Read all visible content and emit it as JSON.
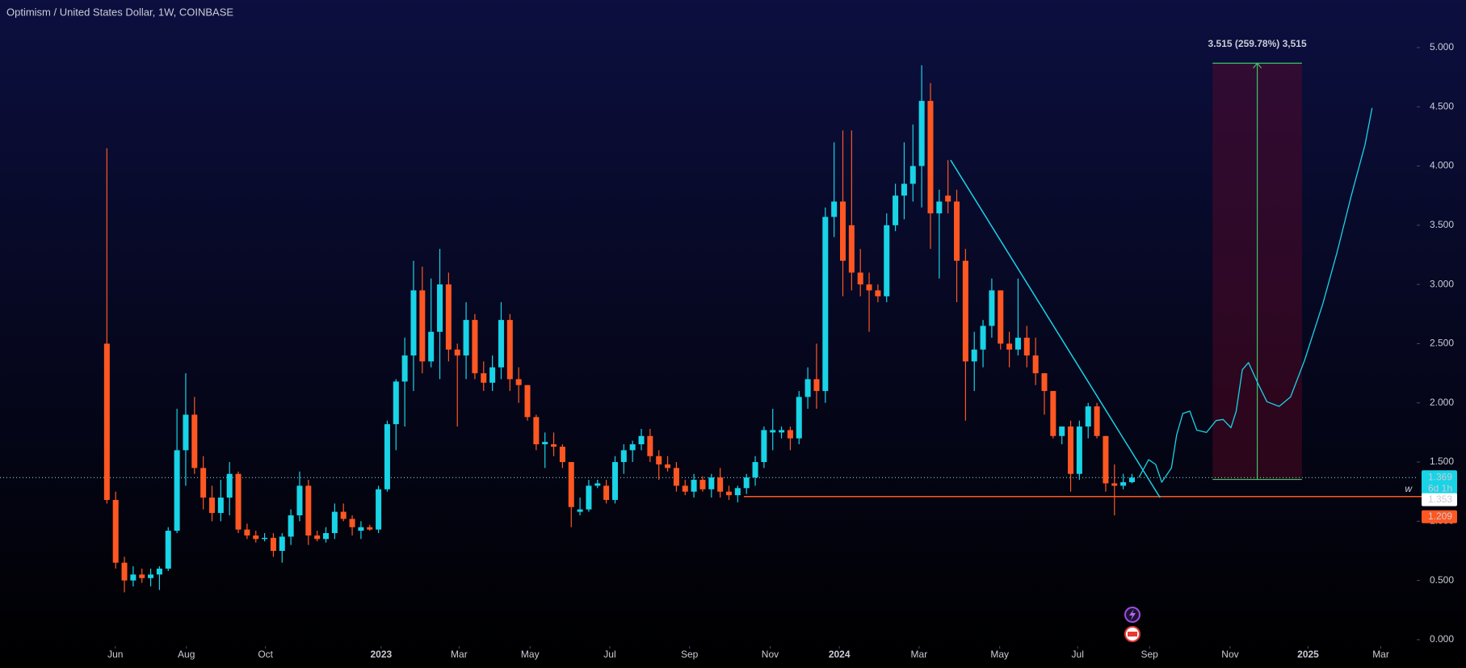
{
  "chart_data": {
    "type": "candlestick",
    "title": "Optimism / United States Dollar, 1W, COINBASE",
    "up_color": "#19d3e6",
    "down_color": "#ff5722",
    "xlim": [
      -12.2,
      149.5
    ],
    "xticks": [
      {
        "value": 0.96,
        "label": "Jun"
      },
      {
        "value": 9.07,
        "label": "Aug"
      },
      {
        "value": 18.1,
        "label": "Oct"
      },
      {
        "value": 31.3,
        "label": "2023"
      },
      {
        "value": 40.2,
        "label": "Mar"
      },
      {
        "value": 48.3,
        "label": "May"
      },
      {
        "value": 57.4,
        "label": "Jul"
      },
      {
        "value": 66.5,
        "label": "Sep"
      },
      {
        "value": 75.7,
        "label": "Nov"
      },
      {
        "value": 83.6,
        "label": "2024"
      },
      {
        "value": 92.7,
        "label": "Mar"
      },
      {
        "value": 101.9,
        "label": "May"
      },
      {
        "value": 110.8,
        "label": "Jul"
      },
      {
        "value": 119.0,
        "label": "Sep"
      },
      {
        "value": 128.2,
        "label": "Nov"
      },
      {
        "value": 137.1,
        "label": "2025"
      },
      {
        "value": 145.4,
        "label": "Mar"
      }
    ],
    "ylim": [
      -0.055,
      5.402
    ],
    "yticks": [
      {
        "value": 0,
        "label": "0.000"
      },
      {
        "value": 0.5,
        "label": "0.500"
      },
      {
        "value": 1,
        "label": "1.000"
      },
      {
        "value": 1.5,
        "label": "1.500"
      },
      {
        "value": 2,
        "label": "2.000"
      },
      {
        "value": 2.5,
        "label": "2.500"
      },
      {
        "value": 3,
        "label": "3.000"
      },
      {
        "value": 3.5,
        "label": "3.500"
      },
      {
        "value": 4,
        "label": "4.000"
      },
      {
        "value": 4.5,
        "label": "4.500"
      },
      {
        "value": 5,
        "label": "5.000"
      }
    ],
    "grid": false,
    "open": [
      2.5,
      1.18,
      0.65,
      0.5,
      0.55,
      0.52,
      0.55,
      0.6,
      0.92,
      1.6,
      1.9,
      1.45,
      1.2,
      1.07,
      1.2,
      1.4,
      0.93,
      0.88,
      0.85,
      0.86,
      0.75,
      0.87,
      1.05,
      1.3,
      0.88,
      0.85,
      0.9,
      1.08,
      1.02,
      0.92,
      0.95,
      0.93,
      1.27,
      1.82,
      2.18,
      2.4,
      2.95,
      2.35,
      2.6,
      3.0,
      2.45,
      2.4,
      2.7,
      2.25,
      2.17,
      2.3,
      2.7,
      2.2,
      2.15,
      1.88,
      1.65,
      1.65,
      1.63,
      1.5,
      1.08,
      1.1,
      1.3,
      1.3,
      1.18,
      1.5,
      1.6,
      1.65,
      1.72,
      1.55,
      1.48,
      1.45,
      1.3,
      1.25,
      1.35,
      1.27,
      1.37,
      1.25,
      1.22,
      1.28,
      1.37,
      1.5,
      1.75,
      1.75,
      1.77,
      1.7,
      2.05,
      2.2,
      2.1,
      3.57,
      3.7,
      3.5,
      3.1,
      3.0,
      2.95,
      2.9,
      3.5,
      3.75,
      3.85,
      4.0,
      4.55,
      3.6,
      3.75,
      3.7,
      3.2,
      2.35,
      2.45,
      2.65,
      2.95,
      2.5,
      2.45,
      2.55,
      2.4,
      2.25,
      2.1,
      1.72,
      1.8,
      1.4,
      1.8,
      1.97,
      1.72,
      1.32,
      1.3,
      1.33
    ],
    "high": [
      4.15,
      1.25,
      0.7,
      0.62,
      0.6,
      0.6,
      0.62,
      0.95,
      1.95,
      2.25,
      2.05,
      1.55,
      1.3,
      1.35,
      1.5,
      1.42,
      0.98,
      0.92,
      0.9,
      0.9,
      0.9,
      1.1,
      1.42,
      1.35,
      0.92,
      0.95,
      1.15,
      1.15,
      1.05,
      1.0,
      0.97,
      1.3,
      1.85,
      2.2,
      2.55,
      3.2,
      3.15,
      3.05,
      3.3,
      3.1,
      2.5,
      2.85,
      2.75,
      2.35,
      2.4,
      2.85,
      2.75,
      2.3,
      2.15,
      1.9,
      1.75,
      1.75,
      1.65,
      1.5,
      1.2,
      1.35,
      1.35,
      1.35,
      1.55,
      1.65,
      1.68,
      1.78,
      1.78,
      1.6,
      1.55,
      1.5,
      1.35,
      1.4,
      1.38,
      1.4,
      1.45,
      1.3,
      1.3,
      1.4,
      1.55,
      1.8,
      1.95,
      1.8,
      1.8,
      2.1,
      2.3,
      2.5,
      3.65,
      4.2,
      4.3,
      4.3,
      3.3,
      3.1,
      3.0,
      3.6,
      3.85,
      4.2,
      4.35,
      4.85,
      4.7,
      3.8,
      4.05,
      3.8,
      3.3,
      2.6,
      2.7,
      3.05,
      2.95,
      2.6,
      3.05,
      2.65,
      2.55,
      2.25,
      2.1,
      1.8,
      1.85,
      1.85,
      2.0,
      2.0,
      1.72,
      1.48,
      1.4,
      1.4
    ],
    "low": [
      1.15,
      0.6,
      0.4,
      0.45,
      0.48,
      0.45,
      0.42,
      0.58,
      0.9,
      1.3,
      1.4,
      1.1,
      1.0,
      1.0,
      1.05,
      0.9,
      0.85,
      0.82,
      0.83,
      0.7,
      0.65,
      0.8,
      1.0,
      0.8,
      0.83,
      0.82,
      0.85,
      1.0,
      0.88,
      0.85,
      0.92,
      0.9,
      1.25,
      1.6,
      1.8,
      2.1,
      2.25,
      2.3,
      2.2,
      2.35,
      1.8,
      2.2,
      2.2,
      2.1,
      2.1,
      2.2,
      2.1,
      2.0,
      1.85,
      1.6,
      1.45,
      1.55,
      1.45,
      0.95,
      1.05,
      1.08,
      1.28,
      1.15,
      1.15,
      1.4,
      1.5,
      1.6,
      1.5,
      1.35,
      1.42,
      1.25,
      1.22,
      1.2,
      1.25,
      1.2,
      1.2,
      1.18,
      1.16,
      1.23,
      1.3,
      1.45,
      1.6,
      1.7,
      1.6,
      1.65,
      1.95,
      1.95,
      2.0,
      3.4,
      2.9,
      2.95,
      2.9,
      2.6,
      2.85,
      2.85,
      3.45,
      3.55,
      3.7,
      3.65,
      3.3,
      3.05,
      3.6,
      2.85,
      1.85,
      2.1,
      2.3,
      2.55,
      2.45,
      2.3,
      2.4,
      2.3,
      2.15,
      1.9,
      1.7,
      1.65,
      1.25,
      1.35,
      1.7,
      1.7,
      1.25,
      1.05,
      1.27,
      1.32
    ],
    "close": [
      1.18,
      0.65,
      0.5,
      0.55,
      0.52,
      0.55,
      0.6,
      0.92,
      1.6,
      1.9,
      1.45,
      1.2,
      1.07,
      1.2,
      1.4,
      0.93,
      0.88,
      0.85,
      0.86,
      0.75,
      0.87,
      1.05,
      1.3,
      0.88,
      0.85,
      0.9,
      1.08,
      1.02,
      0.95,
      0.95,
      0.93,
      1.27,
      1.82,
      2.18,
      2.4,
      2.95,
      2.35,
      2.6,
      3.0,
      2.45,
      2.4,
      2.7,
      2.25,
      2.17,
      2.3,
      2.7,
      2.2,
      2.15,
      1.88,
      1.65,
      1.67,
      1.63,
      1.5,
      1.12,
      1.1,
      1.3,
      1.32,
      1.18,
      1.5,
      1.6,
      1.65,
      1.72,
      1.55,
      1.48,
      1.45,
      1.3,
      1.25,
      1.35,
      1.27,
      1.37,
      1.25,
      1.22,
      1.28,
      1.37,
      1.5,
      1.77,
      1.77,
      1.77,
      1.7,
      2.05,
      2.2,
      2.1,
      3.57,
      3.7,
      3.2,
      3.1,
      3.0,
      2.95,
      2.9,
      3.5,
      3.75,
      3.85,
      4.0,
      4.55,
      3.6,
      3.7,
      3.7,
      3.2,
      2.35,
      2.45,
      2.65,
      2.95,
      2.5,
      2.45,
      2.55,
      2.4,
      2.25,
      2.1,
      1.72,
      1.8,
      1.4,
      1.8,
      1.97,
      1.72,
      1.32,
      1.3,
      1.33,
      1.369
    ],
    "last_price": {
      "value": 1.369,
      "label": "1.369",
      "countdown": "6d 1h"
    },
    "marker_price": {
      "value": 1.353,
      "label": "1.353"
    },
    "support": {
      "value": 1.209,
      "label": "1.209",
      "start": 72.7,
      "tag": "w",
      "color": "#ff5722"
    },
    "trendline": {
      "x": [
        96.3,
        120.2
      ],
      "y": [
        4.05,
        1.2
      ],
      "color": "#19d3e6"
    },
    "projection": {
      "x": [
        117.8,
        118.9,
        119.7,
        120.4,
        121.5,
        122.1,
        122.8,
        123.6,
        124.4,
        125.5,
        126.6,
        127.4,
        128.3,
        128.9,
        129.6,
        130.3,
        131.4,
        132.4,
        133.8,
        135.1,
        136.7,
        138.8,
        140.4,
        142.0,
        143.6,
        144.4
      ],
      "y": [
        1.37,
        1.52,
        1.48,
        1.33,
        1.45,
        1.73,
        1.91,
        1.93,
        1.77,
        1.75,
        1.85,
        1.86,
        1.79,
        1.93,
        2.28,
        2.34,
        2.16,
        2.01,
        1.97,
        2.05,
        2.36,
        2.84,
        3.27,
        3.74,
        4.18,
        4.49
      ],
      "color": "#19d3e6"
    },
    "measure": {
      "x": [
        126.2,
        136.4
      ],
      "from": 1.353,
      "to": 4.868,
      "label": "3.515 (259.78%) 3,515"
    }
  }
}
